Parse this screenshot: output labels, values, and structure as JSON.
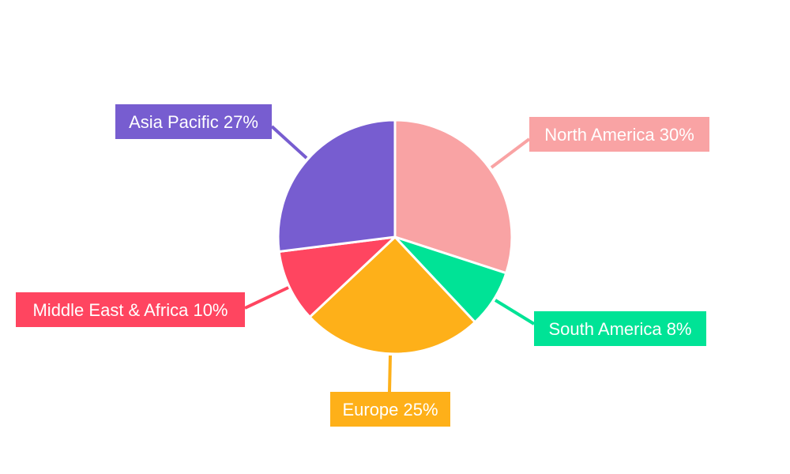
{
  "chart_data": {
    "type": "pie",
    "start_angle": "12 o'clock, clockwise",
    "slices": [
      {
        "label": "North America",
        "value": 30,
        "text": "North America 30%",
        "color": "#f9a3a4"
      },
      {
        "label": "South America",
        "value": 8,
        "text": "South America 8%",
        "color": "#00e396"
      },
      {
        "label": "Europe",
        "value": 25,
        "text": "Europe 25%",
        "color": "#feb019"
      },
      {
        "label": "Middle East & Africa",
        "value": 10,
        "text": "Middle East & Africa 10%",
        "color": "#ff4560"
      },
      {
        "label": "Asia Pacific",
        "value": 27,
        "text": "Asia Pacific 27%",
        "color": "#775dd0"
      }
    ]
  }
}
